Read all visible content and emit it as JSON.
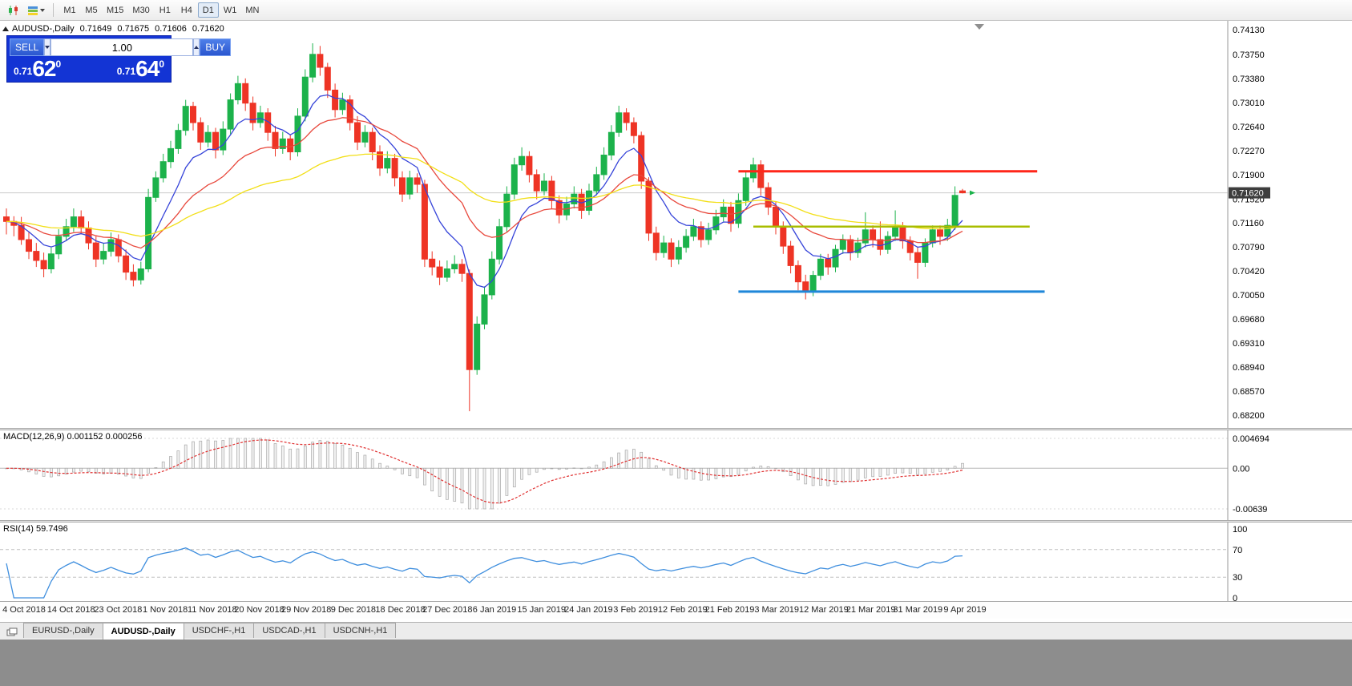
{
  "toolbar": {
    "timeframes": [
      "M1",
      "M5",
      "M15",
      "M30",
      "H1",
      "H4",
      "D1",
      "W1",
      "MN"
    ],
    "active_timeframe": "D1"
  },
  "header": {
    "title": "AUDUSD-,Daily",
    "open": "0.71649",
    "high": "0.71675",
    "low": "0.71606",
    "close": "0.71620"
  },
  "one_click": {
    "sell_label": "SELL",
    "buy_label": "BUY",
    "volume": "1.00",
    "sell_price": {
      "prefix": "0.71",
      "big": "62",
      "sup": "0"
    },
    "buy_price": {
      "prefix": "0.71",
      "big": "64",
      "sup": "0"
    }
  },
  "tabs": [
    {
      "label": "EURUSD-,Daily",
      "active": false
    },
    {
      "label": "AUDUSD-,Daily",
      "active": true
    },
    {
      "label": "USDCHF-,H1",
      "active": false
    },
    {
      "label": "USDCAD-,H1",
      "active": false
    },
    {
      "label": "USDCNH-,H1",
      "active": false
    }
  ],
  "colors": {
    "bull": "#1cb24b",
    "bear": "#ee3425",
    "ma_fast_blue": "#3644d9",
    "ma_mid_red": "#e8483c",
    "ma_slow_yellow": "#f2df17",
    "macd_signal": "#e03030",
    "rsi_line": "#3e8ede",
    "resistance_red": "#ff2619",
    "pivot_olive": "#a9bd00",
    "support_blue": "#1f87d9",
    "panel_blue": "#1334d4"
  },
  "chart_data": {
    "type": "candlestick",
    "title": "AUDUSD-,Daily",
    "timeframe": "D1",
    "current_price": "0.71620",
    "price_scale": [
      "0.74130",
      "0.73750",
      "0.73380",
      "0.73010",
      "0.72640",
      "0.72270",
      "0.71900",
      "0.71520",
      "0.71160",
      "0.70790",
      "0.70420",
      "0.70050",
      "0.69680",
      "0.69310",
      "0.68940",
      "0.68570",
      "0.68200"
    ],
    "x_labels": [
      "4 Oct 2018",
      "14 Oct 2018",
      "23 Oct 2018",
      "1 Nov 2018",
      "11 Nov 2018",
      "20 Nov 2018",
      "29 Nov 2018",
      "9 Dec 2018",
      "18 Dec 2018",
      "27 Dec 2018",
      "6 Jan 2019",
      "15 Jan 2019",
      "24 Jan 2019",
      "3 Feb 2019",
      "12 Feb 2019",
      "21 Feb 2019",
      "3 Mar 2019",
      "12 Mar 2019",
      "21 Mar 2019",
      "31 Mar 2019",
      "9 Apr 2019"
    ],
    "moving_averages": [
      {
        "name": "ma-fast-blue",
        "period": 8,
        "color": "#3644d9"
      },
      {
        "name": "ma-mid-red",
        "period": 20,
        "color": "#e8483c"
      },
      {
        "name": "ma-slow-yellow",
        "period": 50,
        "color": "#f2df17"
      }
    ],
    "hlines": [
      {
        "name": "resistance-line",
        "price": 0.7195,
        "color": "#ff2619",
        "width": 3,
        "from_index": 98,
        "to_index": 138
      },
      {
        "name": "pivot-line",
        "price": 0.711,
        "color": "#a9bd00",
        "width": 2.5,
        "from_index": 100,
        "to_index": 137
      },
      {
        "name": "support-line",
        "price": 0.701,
        "color": "#1f87d9",
        "width": 3,
        "from_index": 98,
        "to_index": 139
      }
    ],
    "macd": {
      "label": "MACD(12,26,9) 0.001152 0.000256",
      "params": [
        12,
        26,
        9
      ],
      "scale": {
        "max": 0.004694,
        "min": -0.00639,
        "labels": [
          {
            "text": "0.004694",
            "value": 0.004694
          },
          {
            "text": "0.00",
            "value": 0
          },
          {
            "text": "-0.00639",
            "value": -0.00639
          }
        ]
      }
    },
    "rsi": {
      "label": "RSI(14) 59.7496",
      "period": 14,
      "levels": [
        70,
        30
      ],
      "scale_labels": [
        {
          "text": "100",
          "value": 100
        },
        {
          "text": "70",
          "value": 70
        },
        {
          "text": "30",
          "value": 30
        },
        {
          "text": "0",
          "value": 0
        }
      ]
    },
    "candles": [
      [
        0.7125,
        0.7138,
        0.7098,
        0.7118
      ],
      [
        0.7118,
        0.7126,
        0.7095,
        0.7112
      ],
      [
        0.7112,
        0.7125,
        0.7082,
        0.709
      ],
      [
        0.709,
        0.7102,
        0.706,
        0.7072
      ],
      [
        0.7072,
        0.7085,
        0.7048,
        0.7058
      ],
      [
        0.7058,
        0.707,
        0.7032,
        0.7045
      ],
      [
        0.7045,
        0.7078,
        0.7038,
        0.7068
      ],
      [
        0.7068,
        0.7106,
        0.706,
        0.7095
      ],
      [
        0.7095,
        0.7122,
        0.7088,
        0.711
      ],
      [
        0.711,
        0.7138,
        0.7102,
        0.7125
      ],
      [
        0.7125,
        0.7135,
        0.7098,
        0.7108
      ],
      [
        0.7108,
        0.7118,
        0.7075,
        0.7085
      ],
      [
        0.7085,
        0.7095,
        0.7048,
        0.706
      ],
      [
        0.706,
        0.7084,
        0.7052,
        0.7072
      ],
      [
        0.7072,
        0.7101,
        0.7064,
        0.709
      ],
      [
        0.709,
        0.7098,
        0.7055,
        0.7065
      ],
      [
        0.7065,
        0.7075,
        0.7028,
        0.704
      ],
      [
        0.704,
        0.7052,
        0.7018,
        0.7028
      ],
      [
        0.7028,
        0.7056,
        0.7021,
        0.7045
      ],
      [
        0.7045,
        0.7168,
        0.704,
        0.7155
      ],
      [
        0.7155,
        0.7195,
        0.7148,
        0.7185
      ],
      [
        0.7185,
        0.7222,
        0.7178,
        0.721
      ],
      [
        0.721,
        0.7242,
        0.72,
        0.723
      ],
      [
        0.723,
        0.7268,
        0.7222,
        0.7258
      ],
      [
        0.7258,
        0.7305,
        0.725,
        0.7295
      ],
      [
        0.7295,
        0.7302,
        0.7258,
        0.727
      ],
      [
        0.727,
        0.7278,
        0.7228,
        0.724
      ],
      [
        0.724,
        0.7266,
        0.7232,
        0.7255
      ],
      [
        0.7255,
        0.7262,
        0.7215,
        0.7228
      ],
      [
        0.7228,
        0.7272,
        0.722,
        0.726
      ],
      [
        0.726,
        0.7315,
        0.7252,
        0.7305
      ],
      [
        0.7305,
        0.7342,
        0.7298,
        0.733
      ],
      [
        0.733,
        0.7338,
        0.7288,
        0.73
      ],
      [
        0.73,
        0.731,
        0.7258,
        0.727
      ],
      [
        0.727,
        0.7296,
        0.7262,
        0.7285
      ],
      [
        0.7285,
        0.7292,
        0.7242,
        0.7255
      ],
      [
        0.7255,
        0.7265,
        0.7218,
        0.723
      ],
      [
        0.723,
        0.7256,
        0.7222,
        0.7245
      ],
      [
        0.7245,
        0.7252,
        0.7212,
        0.7225
      ],
      [
        0.7225,
        0.7292,
        0.7218,
        0.728
      ],
      [
        0.728,
        0.7352,
        0.7272,
        0.734
      ],
      [
        0.734,
        0.7392,
        0.7332,
        0.7375
      ],
      [
        0.7375,
        0.7388,
        0.7342,
        0.7355
      ],
      [
        0.7355,
        0.7362,
        0.7308,
        0.732
      ],
      [
        0.732,
        0.733,
        0.7278,
        0.729
      ],
      [
        0.729,
        0.7316,
        0.7282,
        0.7305
      ],
      [
        0.7305,
        0.7312,
        0.7258,
        0.727
      ],
      [
        0.727,
        0.728,
        0.7228,
        0.724
      ],
      [
        0.724,
        0.7266,
        0.7232,
        0.7255
      ],
      [
        0.7255,
        0.7262,
        0.7212,
        0.7225
      ],
      [
        0.7225,
        0.7235,
        0.7188,
        0.72
      ],
      [
        0.72,
        0.7226,
        0.7192,
        0.7215
      ],
      [
        0.7215,
        0.7222,
        0.7172,
        0.7185
      ],
      [
        0.7185,
        0.7195,
        0.7148,
        0.716
      ],
      [
        0.716,
        0.7196,
        0.7152,
        0.7185
      ],
      [
        0.7185,
        0.7192,
        0.7162,
        0.7175
      ],
      [
        0.7175,
        0.7182,
        0.7048,
        0.706
      ],
      [
        0.706,
        0.7072,
        0.7035,
        0.7048
      ],
      [
        0.7048,
        0.7058,
        0.702,
        0.7032
      ],
      [
        0.7032,
        0.7058,
        0.7025,
        0.7045
      ],
      [
        0.7045,
        0.7066,
        0.7038,
        0.7052
      ],
      [
        0.7052,
        0.706,
        0.7025,
        0.7038
      ],
      [
        0.7038,
        0.7044,
        0.6826,
        0.689
      ],
      [
        0.689,
        0.6972,
        0.6882,
        0.696
      ],
      [
        0.696,
        0.7018,
        0.6952,
        0.7005
      ],
      [
        0.7005,
        0.7072,
        0.6998,
        0.706
      ],
      [
        0.706,
        0.7122,
        0.7052,
        0.711
      ],
      [
        0.711,
        0.7172,
        0.7102,
        0.716
      ],
      [
        0.716,
        0.7216,
        0.7152,
        0.7205
      ],
      [
        0.7205,
        0.7232,
        0.7196,
        0.7218
      ],
      [
        0.7218,
        0.7226,
        0.7178,
        0.719
      ],
      [
        0.719,
        0.7198,
        0.7152,
        0.7165
      ],
      [
        0.7165,
        0.7192,
        0.7158,
        0.718
      ],
      [
        0.718,
        0.7188,
        0.7138,
        0.715
      ],
      [
        0.715,
        0.7158,
        0.7115,
        0.7128
      ],
      [
        0.7128,
        0.7156,
        0.712,
        0.7145
      ],
      [
        0.7145,
        0.7172,
        0.7138,
        0.716
      ],
      [
        0.716,
        0.7168,
        0.7122,
        0.7135
      ],
      [
        0.7135,
        0.7176,
        0.7128,
        0.7165
      ],
      [
        0.7165,
        0.7202,
        0.7158,
        0.719
      ],
      [
        0.719,
        0.7232,
        0.7182,
        0.722
      ],
      [
        0.722,
        0.7266,
        0.7212,
        0.7255
      ],
      [
        0.7255,
        0.7296,
        0.7248,
        0.7285
      ],
      [
        0.7285,
        0.7292,
        0.7258,
        0.727
      ],
      [
        0.727,
        0.7278,
        0.7238,
        0.725
      ],
      [
        0.725,
        0.7256,
        0.7168,
        0.718
      ],
      [
        0.718,
        0.7186,
        0.7088,
        0.71
      ],
      [
        0.71,
        0.711,
        0.7058,
        0.707
      ],
      [
        0.707,
        0.7096,
        0.7062,
        0.7085
      ],
      [
        0.7085,
        0.7092,
        0.7048,
        0.706
      ],
      [
        0.706,
        0.7089,
        0.7052,
        0.7078
      ],
      [
        0.7078,
        0.7106,
        0.707,
        0.7095
      ],
      [
        0.7095,
        0.7122,
        0.7088,
        0.711
      ],
      [
        0.711,
        0.7118,
        0.7078,
        0.709
      ],
      [
        0.709,
        0.7116,
        0.7082,
        0.7105
      ],
      [
        0.7105,
        0.7136,
        0.7098,
        0.7125
      ],
      [
        0.7125,
        0.7152,
        0.7118,
        0.714
      ],
      [
        0.714,
        0.7148,
        0.7102,
        0.7115
      ],
      [
        0.7115,
        0.7161,
        0.7108,
        0.715
      ],
      [
        0.715,
        0.7196,
        0.7142,
        0.7185
      ],
      [
        0.7185,
        0.7216,
        0.7178,
        0.7205
      ],
      [
        0.7205,
        0.7212,
        0.7158,
        0.717
      ],
      [
        0.717,
        0.7178,
        0.7128,
        0.714
      ],
      [
        0.714,
        0.7148,
        0.7098,
        0.711
      ],
      [
        0.711,
        0.7118,
        0.7068,
        0.708
      ],
      [
        0.708,
        0.7088,
        0.7038,
        0.705
      ],
      [
        0.705,
        0.7058,
        0.7012,
        0.7025
      ],
      [
        0.7025,
        0.7036,
        0.6998,
        0.701
      ],
      [
        0.701,
        0.7042,
        0.7003,
        0.7035
      ],
      [
        0.7035,
        0.7068,
        0.7028,
        0.706
      ],
      [
        0.706,
        0.7068,
        0.7036,
        0.7048
      ],
      [
        0.7048,
        0.7082,
        0.704,
        0.7075
      ],
      [
        0.7075,
        0.7098,
        0.7068,
        0.709
      ],
      [
        0.709,
        0.7097,
        0.7058,
        0.707
      ],
      [
        0.707,
        0.7093,
        0.7062,
        0.7085
      ],
      [
        0.7085,
        0.7132,
        0.7078,
        0.7105
      ],
      [
        0.7105,
        0.7112,
        0.7078,
        0.709
      ],
      [
        0.709,
        0.7118,
        0.7066,
        0.7075
      ],
      [
        0.7075,
        0.7103,
        0.7068,
        0.7095
      ],
      [
        0.7095,
        0.7135,
        0.7088,
        0.711
      ],
      [
        0.711,
        0.7117,
        0.7076,
        0.7088
      ],
      [
        0.7088,
        0.7095,
        0.7058,
        0.707
      ],
      [
        0.707,
        0.7078,
        0.703,
        0.7055
      ],
      [
        0.7055,
        0.7092,
        0.7048,
        0.7085
      ],
      [
        0.7085,
        0.7112,
        0.7078,
        0.7105
      ],
      [
        0.7105,
        0.7112,
        0.7082,
        0.7095
      ],
      [
        0.7095,
        0.7122,
        0.7088,
        0.7112
      ],
      [
        0.7112,
        0.7172,
        0.7105,
        0.7158
      ],
      [
        0.7165,
        0.7168,
        0.7161,
        0.7162
      ]
    ]
  }
}
